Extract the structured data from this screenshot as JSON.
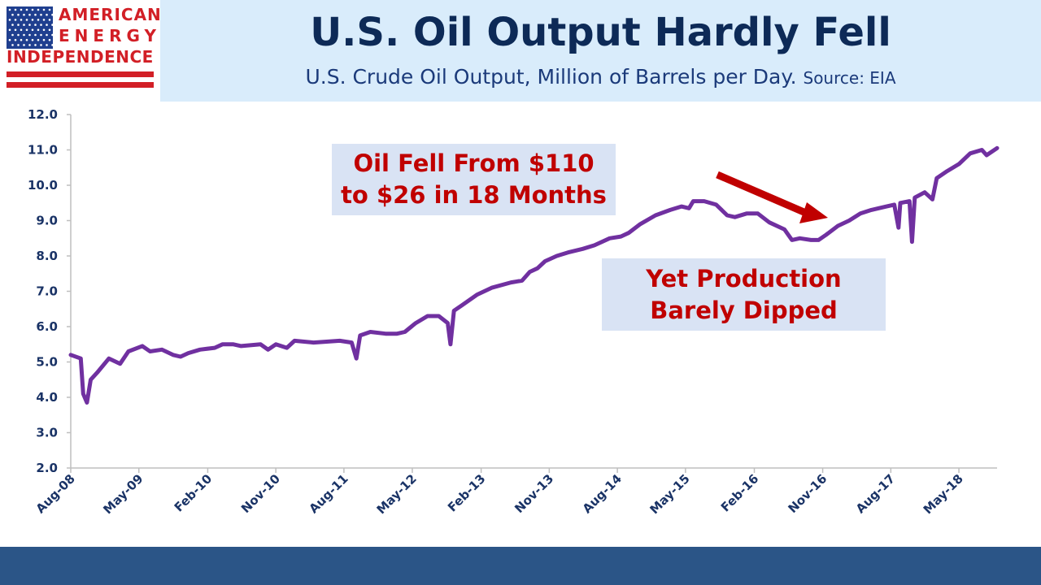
{
  "logo": {
    "line1": "AMERICAN",
    "line2": "ENERGY",
    "line3": "INDEPENDENCE",
    "colors": {
      "red": "#d21f26",
      "blue": "#1f3f8f"
    }
  },
  "header": {
    "title": "U.S. Oil Output Hardly Fell",
    "subtitle": "U.S. Crude Oil Output, Million of Barrels per Day.",
    "source": "Source: EIA"
  },
  "annotations": {
    "oil_fell": [
      "Oil Fell From $110",
      "to $26 in 18 Months"
    ],
    "yet_production": [
      "Yet Production",
      "Barely Dipped"
    ]
  },
  "colors": {
    "line": "#7030a0",
    "arrow": "#c00000",
    "header_bg": "#d9ecfb",
    "footer_bg": "#2b5587"
  },
  "chart_data": {
    "type": "line",
    "title": "U.S. Oil Output Hardly Fell",
    "subtitle": "U.S. Crude Oil Output, Million of Barrels per Day.",
    "ylim": [
      2.0,
      12.0
    ],
    "yticks": [
      "12.0",
      "11.0",
      "10.0",
      "9.0",
      "8.0",
      "7.0",
      "6.0",
      "5.0",
      "4.0",
      "3.0",
      "2.0"
    ],
    "xticks": [
      "Aug-08",
      "May-09",
      "Feb-10",
      "Nov-10",
      "Aug-11",
      "May-12",
      "Feb-13",
      "Nov-13",
      "Aug-14",
      "May-15",
      "Feb-16",
      "Nov-16",
      "Aug-17",
      "May-18"
    ],
    "xlim": [
      "Aug-08",
      "Oct-18"
    ],
    "grid": false,
    "series": [
      {
        "values": [
          [
            "2008-08-01",
            5.2
          ],
          [
            "2008-09-10",
            5.1
          ],
          [
            "2008-09-20",
            4.1
          ],
          [
            "2008-10-05",
            3.85
          ],
          [
            "2008-10-20",
            4.5
          ],
          [
            "2008-11-15",
            4.7
          ],
          [
            "2009-01-01",
            5.1
          ],
          [
            "2009-02-15",
            4.95
          ],
          [
            "2009-03-20",
            5.3
          ],
          [
            "2009-05-15",
            5.45
          ],
          [
            "2009-06-15",
            5.3
          ],
          [
            "2009-08-01",
            5.35
          ],
          [
            "2009-09-15",
            5.2
          ],
          [
            "2009-10-15",
            5.15
          ],
          [
            "2009-11-15",
            5.25
          ],
          [
            "2010-01-01",
            5.35
          ],
          [
            "2010-03-01",
            5.4
          ],
          [
            "2010-04-01",
            5.5
          ],
          [
            "2010-05-15",
            5.5
          ],
          [
            "2010-06-15",
            5.45
          ],
          [
            "2010-09-01",
            5.5
          ],
          [
            "2010-10-01",
            5.35
          ],
          [
            "2010-11-01",
            5.5
          ],
          [
            "2010-12-15",
            5.4
          ],
          [
            "2011-01-15",
            5.6
          ],
          [
            "2011-04-01",
            5.55
          ],
          [
            "2011-07-15",
            5.6
          ],
          [
            "2011-09-01",
            5.55
          ],
          [
            "2011-09-20",
            5.1
          ],
          [
            "2011-10-05",
            5.75
          ],
          [
            "2011-11-15",
            5.85
          ],
          [
            "2012-01-15",
            5.8
          ],
          [
            "2012-03-01",
            5.8
          ],
          [
            "2012-04-01",
            5.85
          ],
          [
            "2012-05-15",
            6.1
          ],
          [
            "2012-07-01",
            6.3
          ],
          [
            "2012-08-15",
            6.3
          ],
          [
            "2012-09-20",
            6.1
          ],
          [
            "2012-10-01",
            5.5
          ],
          [
            "2012-10-15",
            6.45
          ],
          [
            "2012-11-15",
            6.6
          ],
          [
            "2013-01-15",
            6.9
          ],
          [
            "2013-03-15",
            7.1
          ],
          [
            "2013-06-01",
            7.25
          ],
          [
            "2013-07-15",
            7.3
          ],
          [
            "2013-08-15",
            7.55
          ],
          [
            "2013-09-15",
            7.65
          ],
          [
            "2013-10-15",
            7.85
          ],
          [
            "2013-12-01",
            8.0
          ],
          [
            "2014-01-15",
            8.1
          ],
          [
            "2014-03-15",
            8.2
          ],
          [
            "2014-05-01",
            8.3
          ],
          [
            "2014-07-01",
            8.5
          ],
          [
            "2014-08-15",
            8.55
          ],
          [
            "2014-09-15",
            8.65
          ],
          [
            "2014-11-01",
            8.9
          ],
          [
            "2015-01-01",
            9.15
          ],
          [
            "2015-03-01",
            9.3
          ],
          [
            "2015-04-15",
            9.4
          ],
          [
            "2015-05-15",
            9.35
          ],
          [
            "2015-06-01",
            9.55
          ],
          [
            "2015-07-15",
            9.55
          ],
          [
            "2015-09-01",
            9.45
          ],
          [
            "2015-10-15",
            9.15
          ],
          [
            "2015-11-15",
            9.1
          ],
          [
            "2016-01-01",
            9.2
          ],
          [
            "2016-02-15",
            9.2
          ],
          [
            "2016-04-01",
            8.95
          ],
          [
            "2016-06-01",
            8.75
          ],
          [
            "2016-07-01",
            8.45
          ],
          [
            "2016-08-01",
            8.5
          ],
          [
            "2016-09-15",
            8.45
          ],
          [
            "2016-10-15",
            8.45
          ],
          [
            "2016-11-15",
            8.6
          ],
          [
            "2017-01-01",
            8.85
          ],
          [
            "2017-02-15",
            9.0
          ],
          [
            "2017-04-01",
            9.2
          ],
          [
            "2017-05-15",
            9.3
          ],
          [
            "2017-07-15",
            9.4
          ],
          [
            "2017-08-15",
            9.45
          ],
          [
            "2017-09-01",
            8.8
          ],
          [
            "2017-09-08",
            9.5
          ],
          [
            "2017-10-15",
            9.55
          ],
          [
            "2017-10-25",
            8.4
          ],
          [
            "2017-11-05",
            9.65
          ],
          [
            "2017-12-15",
            9.8
          ],
          [
            "2018-01-15",
            9.6
          ],
          [
            "2018-02-01",
            10.2
          ],
          [
            "2018-03-15",
            10.4
          ],
          [
            "2018-05-01",
            10.6
          ],
          [
            "2018-06-15",
            10.9
          ],
          [
            "2018-08-01",
            11.0
          ],
          [
            "2018-08-20",
            10.85
          ],
          [
            "2018-10-01",
            11.05
          ]
        ]
      }
    ]
  }
}
